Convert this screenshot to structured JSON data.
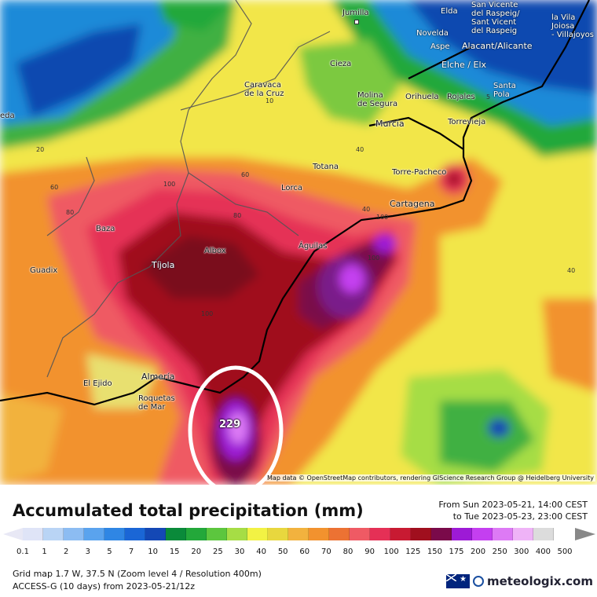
{
  "map": {
    "attribution": "Map data © OpenStreetMap contributors, rendering GIScience Research Group @ Heidelberg University",
    "peak_value": "229",
    "cities": {
      "jumilla": "Jumilla",
      "elda": "Elda",
      "novelda": "Novelda",
      "aspe": "Aspe",
      "san_vicente": "San Vicente\ndel Raspeig/\nSant Vicent\ndel Raspeig",
      "la_vila": "la Vila\nJoiosa\n- Villajoyos",
      "alacant": "Alacant/Alicante",
      "elche": "Elche / Elx",
      "cieza": "Cieza",
      "caravaca": "Caravaca\nde la Cruz",
      "molina": "Molina\nde Segura",
      "orihuela": "Orihuela",
      "rojales": "Rojales",
      "santa_pola": "Santa\nPola",
      "murcia": "Murcia",
      "torrevieja": "Torrevieja",
      "eda": "eda",
      "totana": "Totana",
      "torre_pacheco": "Torre-Pacheco",
      "lorca": "Lorca",
      "cartagena": "Cartagena",
      "baza": "Baza",
      "albox": "Albox",
      "aguilas": "Águilas",
      "tijola": "Tíjola",
      "guadix": "Guadix",
      "almeria": "Almería",
      "el_ejido": "El Ejido",
      "roquetas": "Roquetas\nde Mar"
    },
    "contour_labels": [
      "20",
      "10",
      "60",
      "80",
      "100",
      "60",
      "80",
      "40",
      "100",
      "100",
      "100",
      "40",
      "40",
      "5"
    ]
  },
  "legend": {
    "title": "Accumulated total precipitation (mm)",
    "time_from": "From Sun 2023-05-21, 14:00 CEST",
    "time_to": "to Tue 2023-05-23, 23:00 CEST",
    "ticks": [
      "0.1",
      "1",
      "2",
      "3",
      "5",
      "7",
      "10",
      "15",
      "20",
      "25",
      "30",
      "40",
      "50",
      "60",
      "70",
      "80",
      "90",
      "100",
      "125",
      "150",
      "175",
      "200",
      "250",
      "300",
      "400",
      "500"
    ],
    "colors": [
      "#dfe4f7",
      "#b9d4f5",
      "#8cbcf2",
      "#5aa3ee",
      "#2f86e4",
      "#1a66d6",
      "#1448b5",
      "#0a8a3a",
      "#23a83a",
      "#5cc63e",
      "#a6dd45",
      "#f2f244",
      "#e8d73e",
      "#f2b23e",
      "#f2922e",
      "#ec7233",
      "#ef5a64",
      "#e53056",
      "#c81a32",
      "#a00f1e",
      "#7a0a4a",
      "#9d1ad6",
      "#c43ff0",
      "#dd7af5",
      "#efb3f7",
      "#dcdcdc"
    ],
    "end_left_color": "#e8e8f5",
    "end_right_color": "#888888"
  },
  "footer": {
    "grid_info": "Grid map 1.7 W, 37.5 N (Zoom level 4 / Resolution 400m)",
    "model_info": "ACCESS-G (10 days) from 2023-05-21/12z",
    "brand": "meteologix.com"
  }
}
